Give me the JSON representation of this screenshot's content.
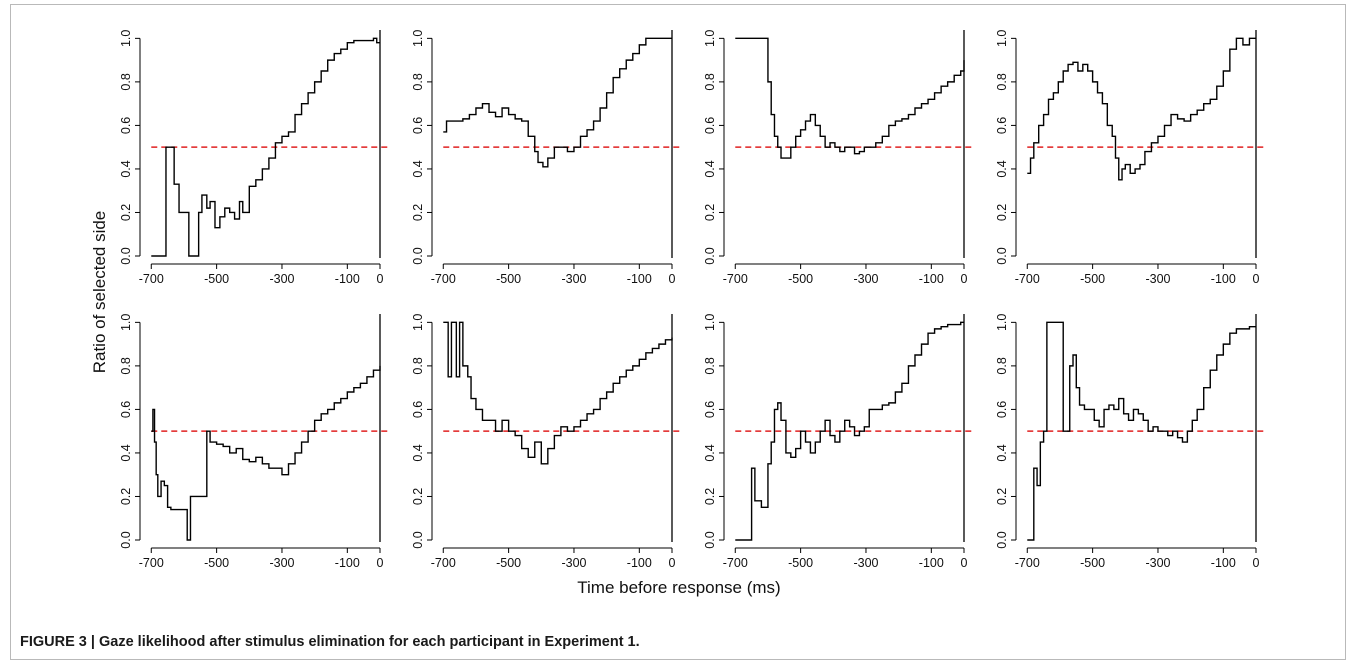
{
  "figure": {
    "caption_label": "FIGURE 3 |",
    "caption_text": " Gaze likelihood after stimulus elimination for each participant in Experiment 1."
  },
  "shared_axes": {
    "xlabel": "Time before response (ms)",
    "ylabel": "Ratio of selected side",
    "xticks": [
      -700,
      -500,
      -300,
      -100,
      0
    ],
    "yticks": [
      0.0,
      0.2,
      0.4,
      0.6,
      0.8,
      1.0
    ],
    "ytick_labels": [
      "0.0",
      "0.2",
      "0.4",
      "0.6",
      "0.8",
      "1.0"
    ],
    "xlim": [
      -710,
      0
    ],
    "ylim": [
      0,
      1.02
    ],
    "reference_line_y": 0.5,
    "reference_line_color": "#e02020",
    "series_color": "#000000"
  },
  "chart_data": [
    {
      "type": "line",
      "panel": "row 1, col 1",
      "x": [
        -700,
        -665,
        -655,
        -640,
        -630,
        -615,
        -600,
        -585,
        -570,
        -555,
        -545,
        -530,
        -520,
        -505,
        -490,
        -475,
        -460,
        -445,
        -430,
        -420,
        -400,
        -380,
        -360,
        -340,
        -320,
        -300,
        -280,
        -260,
        -240,
        -220,
        -200,
        -180,
        -160,
        -140,
        -120,
        -100,
        -80,
        -60,
        -40,
        -20,
        -10,
        0
      ],
      "y": [
        0.0,
        0.0,
        0.5,
        0.5,
        0.33,
        0.2,
        0.2,
        0.0,
        0.0,
        0.2,
        0.28,
        0.22,
        0.25,
        0.13,
        0.18,
        0.22,
        0.2,
        0.17,
        0.25,
        0.2,
        0.32,
        0.35,
        0.4,
        0.45,
        0.52,
        0.55,
        0.57,
        0.65,
        0.7,
        0.75,
        0.8,
        0.85,
        0.9,
        0.93,
        0.95,
        0.98,
        0.99,
        0.99,
        0.99,
        1.0,
        0.98,
        0.98
      ]
    },
    {
      "type": "line",
      "panel": "row 1, col 2",
      "x": [
        -700,
        -690,
        -660,
        -640,
        -620,
        -600,
        -580,
        -560,
        -540,
        -520,
        -500,
        -480,
        -460,
        -440,
        -420,
        -410,
        -395,
        -380,
        -360,
        -340,
        -320,
        -300,
        -280,
        -260,
        -240,
        -220,
        -200,
        -180,
        -160,
        -140,
        -120,
        -100,
        -80,
        -60,
        -40,
        -20,
        0
      ],
      "y": [
        0.57,
        0.62,
        0.62,
        0.63,
        0.65,
        0.68,
        0.7,
        0.66,
        0.64,
        0.68,
        0.65,
        0.63,
        0.62,
        0.55,
        0.48,
        0.43,
        0.41,
        0.45,
        0.5,
        0.5,
        0.48,
        0.5,
        0.55,
        0.58,
        0.62,
        0.68,
        0.75,
        0.82,
        0.86,
        0.9,
        0.93,
        0.97,
        1.0,
        1.0,
        1.0,
        1.0,
        1.0
      ]
    },
    {
      "type": "line",
      "panel": "row 1, col 3",
      "x": [
        -700,
        -680,
        -660,
        -640,
        -620,
        -605,
        -600,
        -590,
        -580,
        -570,
        -560,
        -545,
        -530,
        -515,
        -500,
        -485,
        -470,
        -455,
        -440,
        -425,
        -410,
        -395,
        -380,
        -365,
        -350,
        -335,
        -320,
        -305,
        -290,
        -270,
        -250,
        -230,
        -210,
        -190,
        -170,
        -150,
        -130,
        -110,
        -90,
        -70,
        -50,
        -30,
        -10,
        0
      ],
      "y": [
        1.0,
        1.0,
        1.0,
        1.0,
        1.0,
        1.0,
        0.8,
        0.65,
        0.55,
        0.5,
        0.45,
        0.45,
        0.5,
        0.55,
        0.58,
        0.62,
        0.65,
        0.6,
        0.55,
        0.5,
        0.52,
        0.5,
        0.48,
        0.5,
        0.5,
        0.47,
        0.48,
        0.5,
        0.5,
        0.52,
        0.55,
        0.6,
        0.62,
        0.63,
        0.65,
        0.68,
        0.7,
        0.72,
        0.75,
        0.78,
        0.8,
        0.83,
        0.85,
        0.9
      ]
    },
    {
      "type": "line",
      "panel": "row 1, col 4",
      "x": [
        -700,
        -690,
        -680,
        -665,
        -650,
        -635,
        -620,
        -605,
        -590,
        -575,
        -560,
        -545,
        -530,
        -515,
        -500,
        -485,
        -470,
        -455,
        -440,
        -430,
        -420,
        -410,
        -400,
        -385,
        -370,
        -355,
        -340,
        -320,
        -300,
        -280,
        -260,
        -240,
        -220,
        -200,
        -180,
        -160,
        -140,
        -120,
        -100,
        -80,
        -60,
        -40,
        -20,
        0
      ],
      "y": [
        0.38,
        0.45,
        0.52,
        0.6,
        0.65,
        0.72,
        0.75,
        0.8,
        0.85,
        0.88,
        0.89,
        0.85,
        0.88,
        0.85,
        0.8,
        0.75,
        0.7,
        0.6,
        0.55,
        0.45,
        0.35,
        0.4,
        0.42,
        0.38,
        0.4,
        0.42,
        0.48,
        0.52,
        0.55,
        0.6,
        0.65,
        0.63,
        0.62,
        0.65,
        0.67,
        0.7,
        0.72,
        0.78,
        0.85,
        0.95,
        1.0,
        0.97,
        1.0,
        1.0
      ]
    },
    {
      "type": "line",
      "panel": "row 2, col 1",
      "x": [
        -700,
        -695,
        -690,
        -685,
        -680,
        -670,
        -660,
        -650,
        -640,
        -620,
        -600,
        -590,
        -580,
        -560,
        -540,
        -530,
        -520,
        -500,
        -480,
        -460,
        -440,
        -420,
        -400,
        -380,
        -360,
        -340,
        -320,
        -300,
        -280,
        -260,
        -240,
        -220,
        -200,
        -180,
        -160,
        -140,
        -120,
        -100,
        -80,
        -60,
        -40,
        -20,
        0
      ],
      "y": [
        0.5,
        0.6,
        0.45,
        0.3,
        0.2,
        0.27,
        0.25,
        0.15,
        0.14,
        0.14,
        0.14,
        0.0,
        0.2,
        0.2,
        0.2,
        0.5,
        0.45,
        0.44,
        0.43,
        0.4,
        0.42,
        0.37,
        0.36,
        0.38,
        0.35,
        0.33,
        0.33,
        0.3,
        0.35,
        0.4,
        0.45,
        0.5,
        0.55,
        0.58,
        0.6,
        0.63,
        0.65,
        0.68,
        0.7,
        0.72,
        0.75,
        0.78,
        0.8
      ]
    },
    {
      "type": "line",
      "panel": "row 2, col 2",
      "x": [
        -700,
        -685,
        -675,
        -660,
        -650,
        -640,
        -625,
        -615,
        -600,
        -580,
        -560,
        -540,
        -520,
        -500,
        -480,
        -460,
        -440,
        -420,
        -400,
        -380,
        -360,
        -340,
        -320,
        -300,
        -280,
        -260,
        -240,
        -220,
        -200,
        -180,
        -160,
        -140,
        -120,
        -100,
        -80,
        -60,
        -40,
        -20,
        0
      ],
      "y": [
        1.0,
        0.75,
        1.0,
        0.75,
        1.0,
        0.8,
        0.75,
        0.65,
        0.6,
        0.55,
        0.55,
        0.5,
        0.55,
        0.5,
        0.48,
        0.42,
        0.38,
        0.45,
        0.35,
        0.42,
        0.48,
        0.52,
        0.5,
        0.52,
        0.55,
        0.58,
        0.6,
        0.65,
        0.68,
        0.72,
        0.75,
        0.78,
        0.8,
        0.83,
        0.86,
        0.88,
        0.9,
        0.92,
        0.93
      ]
    },
    {
      "type": "line",
      "panel": "row 2, col 3",
      "x": [
        -700,
        -680,
        -660,
        -650,
        -640,
        -620,
        -610,
        -600,
        -590,
        -580,
        -570,
        -560,
        -545,
        -530,
        -515,
        -500,
        -485,
        -470,
        -455,
        -440,
        -425,
        -410,
        -395,
        -380,
        -365,
        -350,
        -335,
        -320,
        -305,
        -290,
        -270,
        -250,
        -230,
        -210,
        -190,
        -170,
        -150,
        -130,
        -110,
        -90,
        -70,
        -50,
        -30,
        -10,
        0
      ],
      "y": [
        0.0,
        0.0,
        0.0,
        0.33,
        0.18,
        0.15,
        0.15,
        0.35,
        0.45,
        0.6,
        0.63,
        0.55,
        0.4,
        0.38,
        0.42,
        0.5,
        0.45,
        0.4,
        0.45,
        0.5,
        0.55,
        0.48,
        0.45,
        0.5,
        0.55,
        0.52,
        0.48,
        0.5,
        0.52,
        0.6,
        0.6,
        0.62,
        0.63,
        0.68,
        0.72,
        0.8,
        0.85,
        0.9,
        0.95,
        0.97,
        0.98,
        0.99,
        0.99,
        1.0,
        1.0
      ]
    },
    {
      "type": "line",
      "panel": "row 2, col 4",
      "x": [
        -700,
        -690,
        -680,
        -670,
        -660,
        -650,
        -640,
        -620,
        -600,
        -590,
        -580,
        -570,
        -560,
        -550,
        -540,
        -525,
        -510,
        -495,
        -480,
        -465,
        -450,
        -435,
        -420,
        -405,
        -390,
        -375,
        -360,
        -345,
        -330,
        -315,
        -300,
        -285,
        -270,
        -255,
        -240,
        -225,
        -210,
        -195,
        -180,
        -160,
        -140,
        -120,
        -100,
        -80,
        -60,
        -40,
        -20,
        0
      ],
      "y": [
        0.0,
        0.0,
        0.33,
        0.25,
        0.45,
        0.5,
        1.0,
        1.0,
        1.0,
        0.5,
        0.5,
        0.8,
        0.85,
        0.7,
        0.62,
        0.6,
        0.6,
        0.55,
        0.52,
        0.6,
        0.62,
        0.6,
        0.65,
        0.58,
        0.55,
        0.6,
        0.58,
        0.55,
        0.5,
        0.52,
        0.5,
        0.5,
        0.48,
        0.5,
        0.47,
        0.45,
        0.5,
        0.55,
        0.6,
        0.7,
        0.78,
        0.85,
        0.9,
        0.95,
        0.97,
        0.97,
        0.98,
        0.98
      ]
    }
  ]
}
